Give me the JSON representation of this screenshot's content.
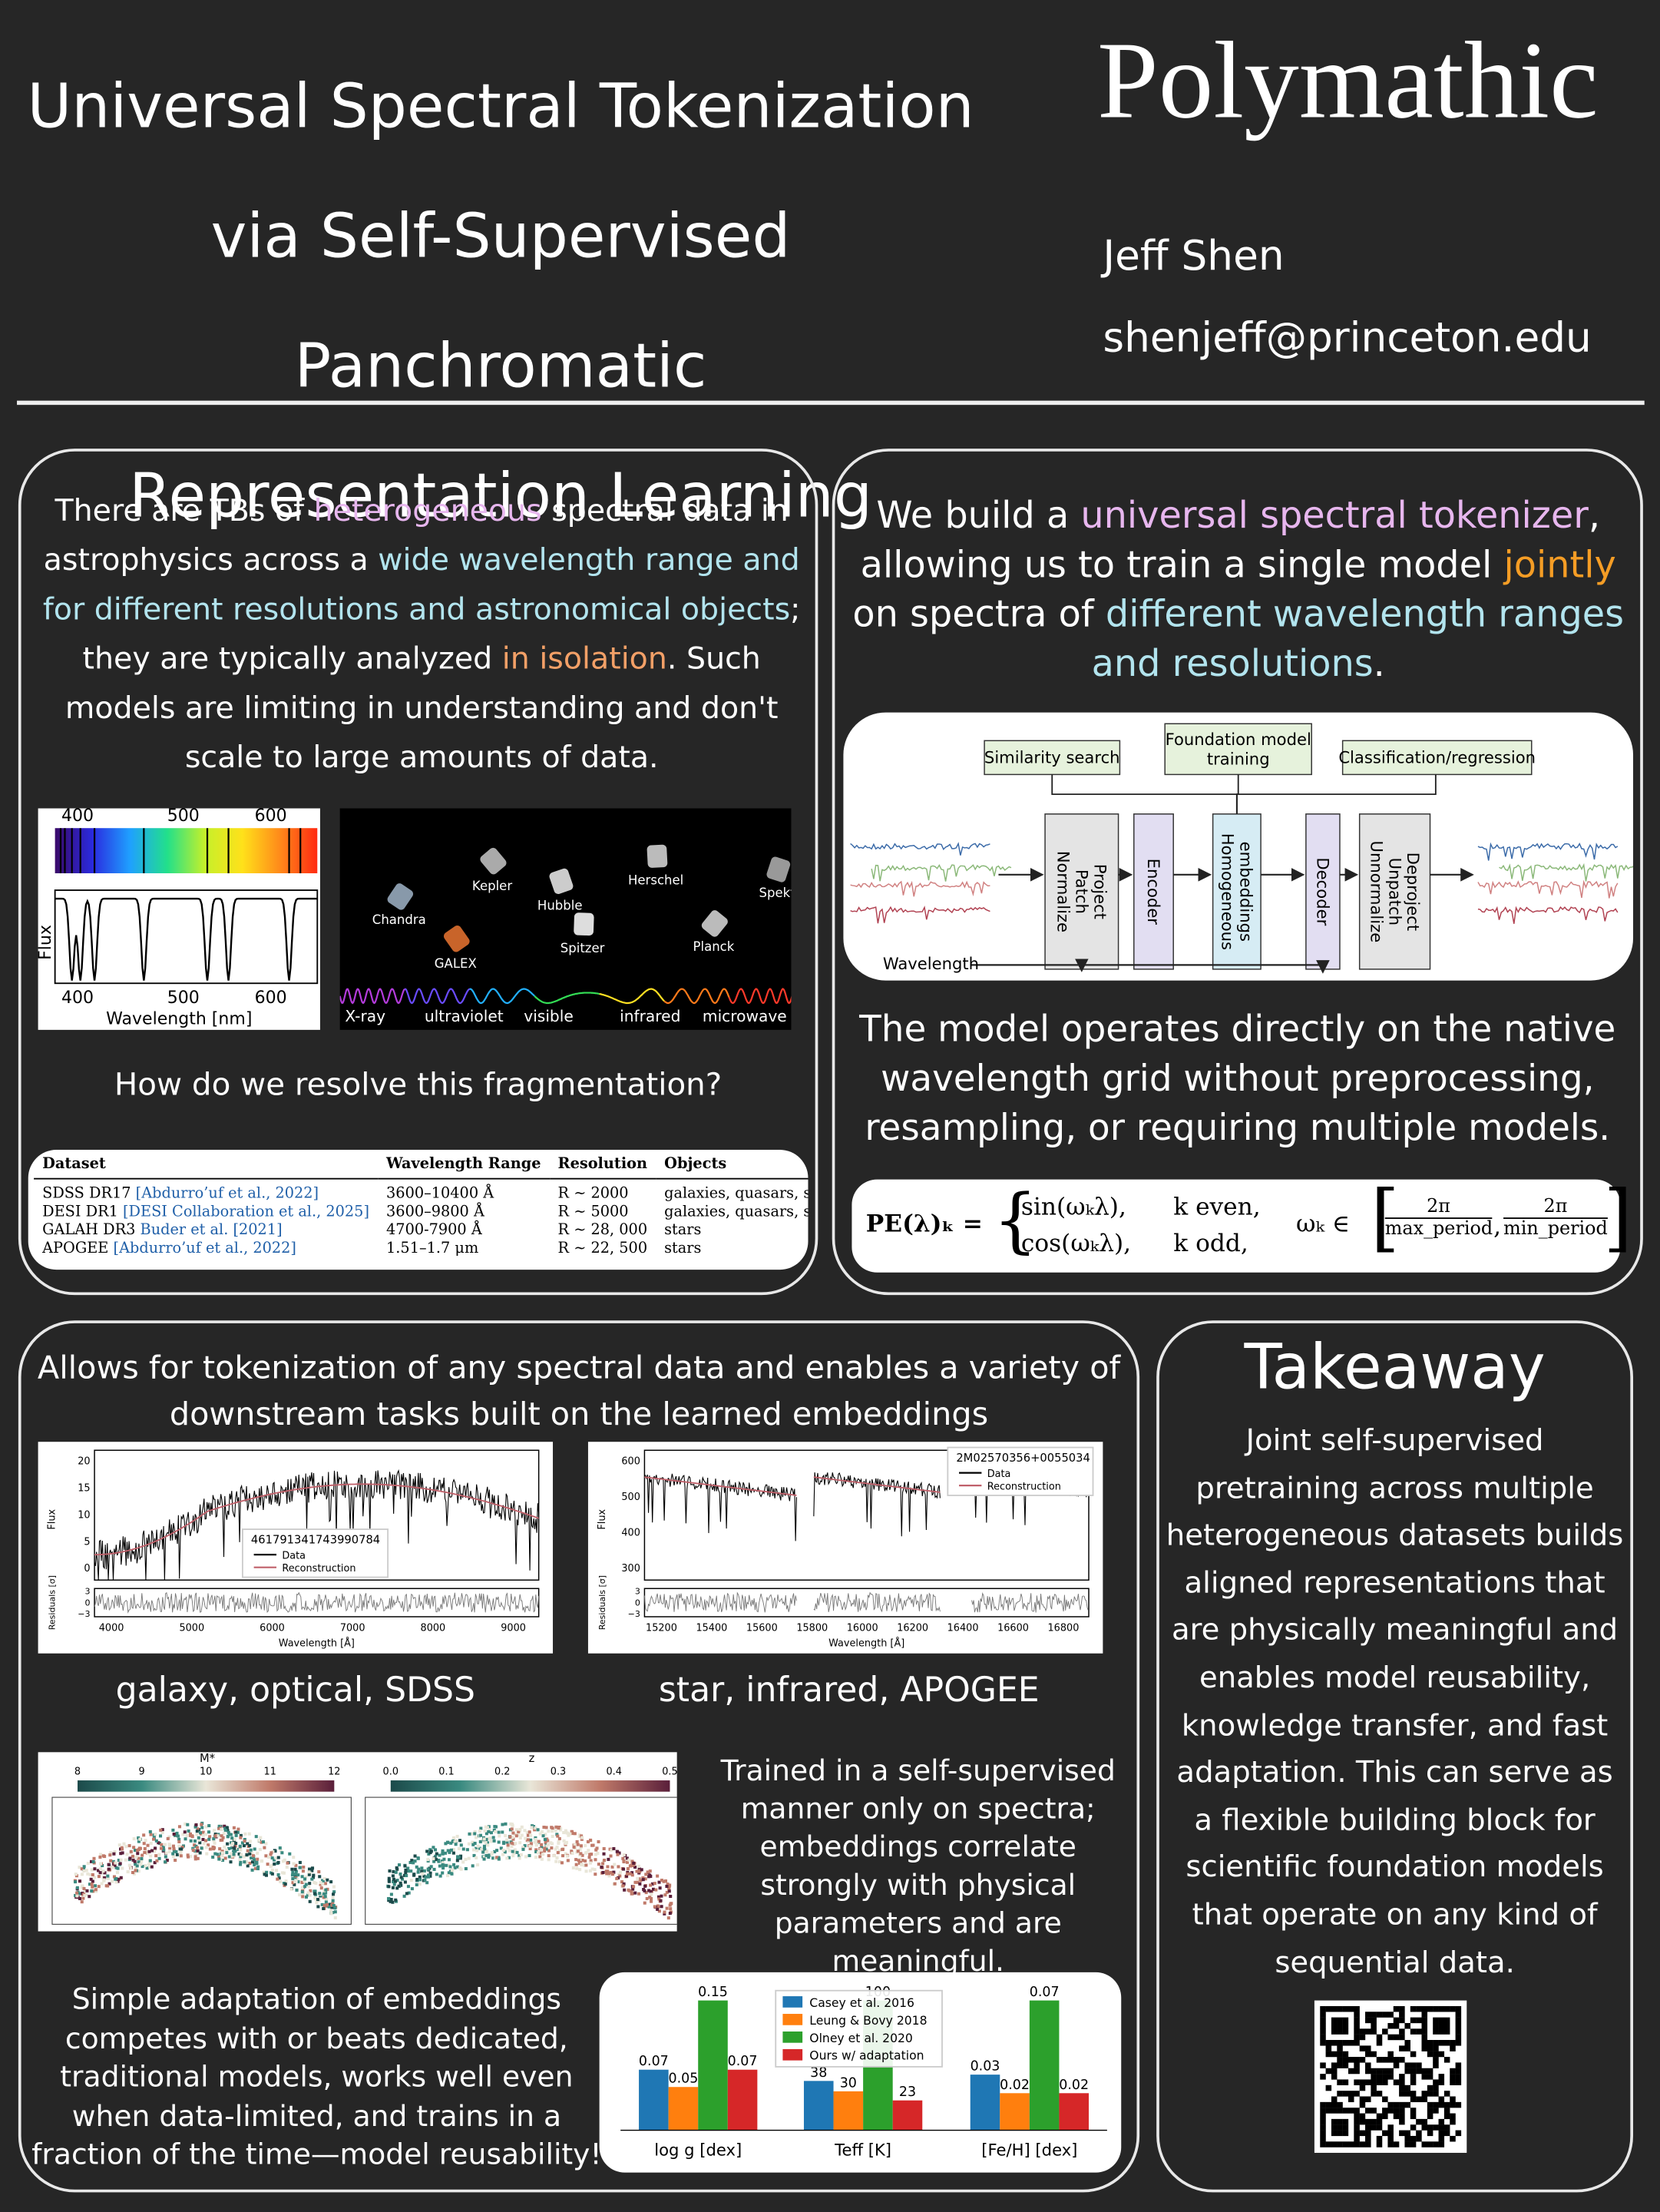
{
  "header": {
    "title": [
      "Universal Spectral Tokenization",
      "via Self-Supervised Panchromatic",
      "Representation Learning"
    ],
    "logo": "Polymathic",
    "author": "Jeff Shen",
    "email": "shenjeff@princeton.edu"
  },
  "problem": {
    "text": [
      {
        "text": "There are TBs of ",
        "style": "plain"
      },
      {
        "text": "heterogeneous",
        "style": "pink"
      },
      {
        "text": " spectral data in astrophysics across a ",
        "style": "plain"
      },
      {
        "text": "wide wavelength range and for different resolutions and astronomical objects",
        "style": "cyan"
      },
      {
        "text": "; they are typically analyzed ",
        "style": "plain"
      },
      {
        "text": "in isolation",
        "style": "orange"
      },
      {
        "text": ". Such models are limiting in understanding and don't scale to large amounts of data.",
        "style": "plain"
      }
    ],
    "spectrum_figure": {
      "top_ticks": [
        "400",
        "500",
        "600"
      ],
      "bottom_ticks": [
        "400",
        "500",
        "600"
      ],
      "y_label": "Flux",
      "x_label": "Wavelength [nm]"
    },
    "telescope_figure": {
      "telescopes": [
        "Kepler",
        "Herschel",
        "Chandra",
        "Hubble",
        "Spekt",
        "GALEX",
        "Spitzer",
        "Planck"
      ],
      "bands": [
        "X-ray",
        "ultraviolet",
        "visible",
        "infrared",
        "microwave"
      ]
    },
    "question": "How do we resolve this fragmentation?",
    "table": {
      "header": [
        "Dataset",
        "Wavelength Range",
        "Resolution",
        "Objects"
      ],
      "rows": [
        {
          "dataset": "SDSS DR17",
          "citation": "[Abdurro’uf et al., 2022]",
          "range": "3600–10400 Å",
          "resolution": "R ∼ 2000",
          "objects": "galaxies, quasars, stars"
        },
        {
          "dataset": "DESI DR1",
          "citation": "[DESI Collaboration et al., 2025]",
          "range": "3600–9800 Å",
          "resolution": "R ∼ 5000",
          "objects": "galaxies, quasars, stars"
        },
        {
          "dataset": "GALAH DR3",
          "citation": "Buder et al. [2021]",
          "range": "4700-7900 Å",
          "resolution": "R ∼ 28, 000",
          "objects": "stars"
        },
        {
          "dataset": "APOGEE",
          "citation": "[Abdurro’uf et al., 2022]",
          "range": "1.51–1.7 μm",
          "resolution": "R ∼ 22, 500",
          "objects": "stars"
        }
      ]
    }
  },
  "method": {
    "text": [
      {
        "text": "We build a ",
        "style": "plain"
      },
      {
        "text": "universal spectral tokenizer",
        "style": "pink"
      },
      {
        "text": ", allowing us to train a single model ",
        "style": "plain"
      },
      {
        "text": "jointly",
        "style": "gold"
      },
      {
        "text": " on spectra of ",
        "style": "plain"
      },
      {
        "text": "different wavelength ranges and resolutions",
        "style": "cyan"
      },
      {
        "text": ".",
        "style": "plain"
      }
    ],
    "diagram": {
      "tasks": [
        [
          "Similarity search"
        ],
        [
          "Foundation model",
          "training"
        ],
        [
          "Classification/regression"
        ]
      ],
      "blocks": [
        [
          "Normalize",
          "Patch",
          "Project"
        ],
        [
          "Encoder"
        ],
        [
          "Homogeneous",
          "embeddings"
        ],
        [
          "Decoder"
        ],
        [
          "Unnormalize",
          "Unpatch",
          "Deproject"
        ]
      ],
      "input_label": "Wavelength"
    },
    "note": "The model operates directly on the native wavelength grid without preprocessing, resampling, or requiring multiple models.",
    "formula": {
      "lhs": "PE(λ)ₖ =",
      "cases": [
        [
          "sin(ωₖλ),",
          "k even,"
        ],
        [
          "cos(ωₖλ),",
          "k odd,"
        ]
      ],
      "omega": "ωₖ ∈",
      "numerator": "2π",
      "denominators": [
        "max_period",
        "min_period"
      ]
    }
  },
  "applications": {
    "heading": "Allows for tokenization of any spectral data and enables a variety of downstream tasks built on the learned embeddings",
    "galaxy_plot": {
      "y_ticks": [
        "20",
        "15",
        "10",
        "5",
        "0"
      ],
      "y_label": "Flux",
      "res_label": "Residuals [σ]",
      "res_ticks": [
        "3",
        "0",
        "−3"
      ],
      "x_ticks": [
        "4000",
        "5000",
        "6000",
        "7000",
        "8000",
        "9000"
      ],
      "x_label": "Wavelength [Å]",
      "legend_title": "461791341743990784",
      "legend": [
        "Data",
        "Reconstruction"
      ]
    },
    "galaxy_caption": "galaxy, optical, SDSS",
    "star_plot": {
      "y_ticks": [
        "600",
        "500",
        "400",
        "300"
      ],
      "y_label": "Flux",
      "res_label": "Residuals [σ]",
      "res_ticks": [
        "3",
        "0",
        "−3"
      ],
      "x_ticks": [
        "15200",
        "15400",
        "15600",
        "15800",
        "16000",
        "16200",
        "16400",
        "16600",
        "16800"
      ],
      "x_label": "Wavelength [Å]",
      "legend_title": "2M02570356+0055034",
      "legend": [
        "Data",
        "Reconstruction"
      ]
    },
    "star_caption": "star, infrared, APOGEE",
    "embedding_figure": {
      "panels": [
        {
          "label": "M*",
          "ticks": [
            "8",
            "9",
            "10",
            "11",
            "12"
          ]
        },
        {
          "label": "z",
          "ticks": [
            "0.0",
            "0.1",
            "0.2",
            "0.3",
            "0.4",
            "0.5"
          ]
        }
      ]
    },
    "embedding_note": "Trained in a self-supervised manner only on spectra; embeddings correlate strongly with physical parameters and are meaningful.",
    "adaptation_note": "Simple adaptation of embeddings competes with or beats dedicated, traditional models, works well even when data-limited, and trains in a fraction of the time—model reusability!",
    "bar_chart": {
      "type": "bar",
      "categories": [
        "log g [dex]",
        "Teff [K]",
        "[Fe/H] [dex]"
      ],
      "series": [
        {
          "name": "Casey et al. 2016",
          "color": "#1f77b4",
          "values": [
            0.07,
            38,
            0.03
          ]
        },
        {
          "name": "Leung & Bovy 2018",
          "color": "#ff7f0e",
          "values": [
            0.05,
            30,
            0.02
          ]
        },
        {
          "name": "Olney et al. 2020",
          "color": "#2ca02c",
          "values": [
            0.15,
            100,
            0.07
          ]
        },
        {
          "name": "Ours w/ adaptation",
          "color": "#d62728",
          "values": [
            0.07,
            23,
            0.02
          ]
        }
      ]
    }
  },
  "takeaway": {
    "title": "Takeaway",
    "text": "Joint self-supervised pretraining across multiple heterogeneous datasets builds aligned representations that are physically meaningful and enables model reusability, knowledge transfer, and fast adaptation. This can serve as a flexible building block for scientific foundation models that operate on any kind of sequential data."
  }
}
